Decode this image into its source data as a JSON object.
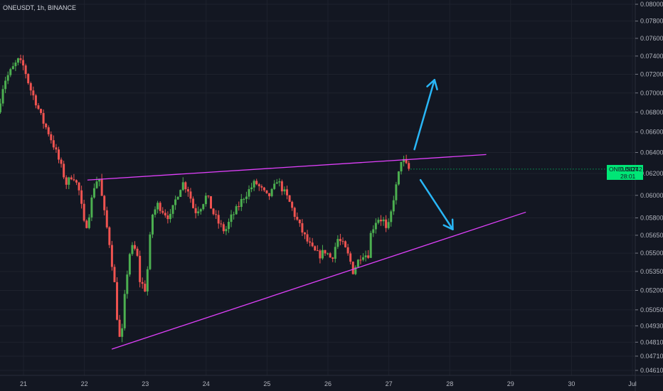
{
  "header": {
    "symbol_title": "ONEUSDT, 1h, BINANCE"
  },
  "price_badge": {
    "symbol": "ONEUSDT",
    "price": "0.06242",
    "countdown": "28:01"
  },
  "colors": {
    "background": "#131722",
    "grid": "#1e222d",
    "up": "#26a69a",
    "up_candle": "#4caf50",
    "down": "#ef5350",
    "trendline": "#e040fb",
    "arrow": "#29b6f6",
    "badge": "#00e676"
  },
  "chart_data": {
    "type": "candlestick",
    "title": "ONEUSDT, 1h, BINANCE",
    "xlabel": "",
    "ylabel": "",
    "y_scale": "log",
    "x_ticks": [
      "21",
      "22",
      "23",
      "24",
      "25",
      "26",
      "27",
      "28",
      "29",
      "30",
      "Jul"
    ],
    "y_ticks": [
      "0.08000",
      "0.07800",
      "0.07600",
      "0.07400",
      "0.07200",
      "0.07000",
      "0.06800",
      "0.06600",
      "0.06400",
      "0.06200",
      "0.06000",
      "0.05800",
      "0.05650",
      "0.05500",
      "0.05350",
      "0.05200",
      "0.05050",
      "0.04930",
      "0.04810",
      "0.04710",
      "0.04610"
    ],
    "x_range_days": [
      20.6,
      31.0
    ],
    "y_range": [
      0.0456,
      0.0808
    ],
    "grid": true,
    "last_price": 0.06242,
    "price_path": [
      [
        20.62,
        0.068
      ],
      [
        20.72,
        0.0712
      ],
      [
        20.85,
        0.0725
      ],
      [
        20.95,
        0.0735
      ],
      [
        21.05,
        0.0728
      ],
      [
        21.15,
        0.0705
      ],
      [
        21.25,
        0.069
      ],
      [
        21.35,
        0.0672
      ],
      [
        21.45,
        0.066
      ],
      [
        21.55,
        0.0645
      ],
      [
        21.65,
        0.0628
      ],
      [
        21.75,
        0.061
      ],
      [
        21.85,
        0.062
      ],
      [
        21.95,
        0.0605
      ],
      [
        22.0,
        0.0588
      ],
      [
        22.05,
        0.057
      ],
      [
        22.1,
        0.0578
      ],
      [
        22.2,
        0.0608
      ],
      [
        22.28,
        0.0618
      ],
      [
        22.35,
        0.059
      ],
      [
        22.45,
        0.056
      ],
      [
        22.55,
        0.052
      ],
      [
        22.6,
        0.0485
      ],
      [
        22.65,
        0.0482
      ],
      [
        22.72,
        0.0525
      ],
      [
        22.8,
        0.0555
      ],
      [
        22.9,
        0.0552
      ],
      [
        22.95,
        0.0528
      ],
      [
        23.05,
        0.052
      ],
      [
        23.15,
        0.0582
      ],
      [
        23.25,
        0.0592
      ],
      [
        23.35,
        0.0585
      ],
      [
        23.45,
        0.058
      ],
      [
        23.55,
        0.0598
      ],
      [
        23.65,
        0.0612
      ],
      [
        23.75,
        0.0605
      ],
      [
        23.85,
        0.0585
      ],
      [
        23.95,
        0.059
      ],
      [
        24.05,
        0.06
      ],
      [
        24.15,
        0.0585
      ],
      [
        24.25,
        0.0575
      ],
      [
        24.35,
        0.0568
      ],
      [
        24.45,
        0.058
      ],
      [
        24.55,
        0.0588
      ],
      [
        24.65,
        0.0598
      ],
      [
        24.75,
        0.0605
      ],
      [
        24.85,
        0.0612
      ],
      [
        24.95,
        0.0605
      ],
      [
        25.05,
        0.0598
      ],
      [
        25.15,
        0.0605
      ],
      [
        25.2,
        0.0615
      ],
      [
        25.3,
        0.0605
      ],
      [
        25.4,
        0.0595
      ],
      [
        25.5,
        0.0582
      ],
      [
        25.6,
        0.057
      ],
      [
        25.7,
        0.056
      ],
      [
        25.8,
        0.0552
      ],
      [
        25.9,
        0.0548
      ],
      [
        26.0,
        0.0552
      ],
      [
        26.1,
        0.0545
      ],
      [
        26.2,
        0.0562
      ],
      [
        26.3,
        0.0556
      ],
      [
        26.4,
        0.0545
      ],
      [
        26.45,
        0.0535
      ],
      [
        26.5,
        0.054
      ],
      [
        26.6,
        0.055
      ],
      [
        26.7,
        0.0548
      ],
      [
        26.75,
        0.0568
      ],
      [
        26.85,
        0.058
      ],
      [
        26.95,
        0.0578
      ],
      [
        27.0,
        0.0568
      ],
      [
        27.05,
        0.0575
      ],
      [
        27.12,
        0.0598
      ],
      [
        27.18,
        0.0612
      ],
      [
        27.25,
        0.0635
      ],
      [
        27.3,
        0.063
      ],
      [
        27.36,
        0.0624
      ]
    ],
    "trendlines": [
      {
        "name": "upper",
        "from": [
          22.05,
          0.0614
        ],
        "to": [
          28.6,
          0.0638
        ]
      },
      {
        "name": "lower",
        "from": [
          22.45,
          0.0476
        ],
        "to": [
          29.25,
          0.0585
        ]
      }
    ],
    "arrows": [
      {
        "name": "breakout-up",
        "from": [
          27.42,
          0.0643
        ],
        "to": [
          27.75,
          0.0714
        ]
      },
      {
        "name": "breakdown",
        "from": [
          27.52,
          0.0614
        ],
        "to": [
          28.05,
          0.057
        ]
      }
    ]
  }
}
